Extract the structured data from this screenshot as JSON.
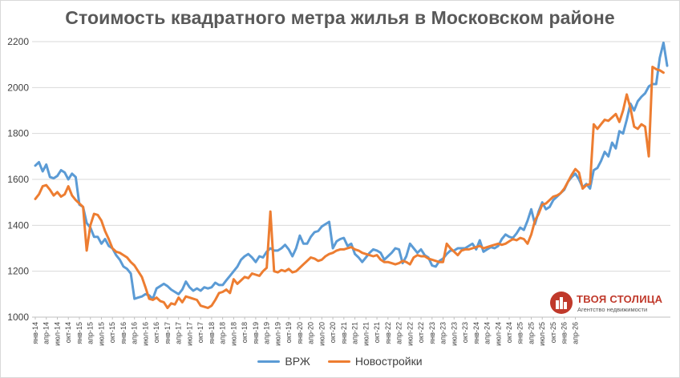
{
  "chart_data": {
    "type": "line",
    "title": "Стоимость квадратного метра жилья в Московском районе",
    "xlabel": "",
    "ylabel": "",
    "ylim": [
      1000,
      2200
    ],
    "yticks": [
      "1000",
      "1200",
      "1400",
      "1600",
      "1800",
      "2000",
      "2200"
    ],
    "grid": "horizontal",
    "legend": "bottom",
    "x_labels": [
      "янв-14",
      "апр-14",
      "июл-14",
      "окт-14",
      "янв-15",
      "апр-15",
      "июл-15",
      "окт-15",
      "янв-16",
      "апр-16",
      "июл-16",
      "окт-16",
      "янв-17",
      "апр-17",
      "июл-17",
      "окт-17",
      "янв-18",
      "апр-18",
      "июл-18",
      "окт-18",
      "янв-19",
      "апр-19",
      "июл-19",
      "окт-19",
      "янв-20",
      "апр-20",
      "июл-20",
      "окт-20",
      "янв-21",
      "апр-21",
      "июл-21",
      "окт-21",
      "янв-22",
      "апр-22",
      "июл-22",
      "окт-22",
      "янв-23",
      "апр-23",
      "июл-23",
      "окт-23",
      "янв-24",
      "апр-24",
      "июл-24",
      "окт-24",
      "янв-25",
      "апр-25",
      "июл-25",
      "окт-25",
      "янв-26",
      "апр-26"
    ],
    "series": [
      {
        "name": "ВРЖ",
        "color": "#5b9bd5",
        "values": [
          1660,
          1675,
          1635,
          1665,
          1610,
          1605,
          1615,
          1640,
          1630,
          1600,
          1625,
          1610,
          1490,
          1480,
          1410,
          1390,
          1350,
          1350,
          1320,
          1340,
          1310,
          1300,
          1270,
          1250,
          1220,
          1210,
          1190,
          1080,
          1085,
          1090,
          1100,
          1095,
          1080,
          1125,
          1135,
          1145,
          1135,
          1120,
          1110,
          1100,
          1120,
          1155,
          1130,
          1115,
          1125,
          1115,
          1130,
          1125,
          1130,
          1150,
          1140,
          1140,
          1160,
          1180,
          1200,
          1220,
          1250,
          1265,
          1275,
          1260,
          1240,
          1265,
          1260,
          1285,
          1300,
          1290,
          1290,
          1300,
          1315,
          1295,
          1265,
          1300,
          1355,
          1320,
          1320,
          1350,
          1370,
          1375,
          1395,
          1405,
          1415,
          1300,
          1330,
          1340,
          1345,
          1310,
          1320,
          1275,
          1260,
          1240,
          1260,
          1280,
          1295,
          1290,
          1280,
          1250,
          1265,
          1280,
          1300,
          1295,
          1235,
          1265,
          1320,
          1300,
          1280,
          1295,
          1270,
          1260,
          1225,
          1220,
          1245,
          1255,
          1275,
          1290,
          1290,
          1300,
          1300,
          1300,
          1310,
          1320,
          1295,
          1335,
          1285,
          1295,
          1305,
          1300,
          1310,
          1340,
          1360,
          1350,
          1345,
          1365,
          1390,
          1380,
          1420,
          1470,
          1405,
          1460,
          1500,
          1470,
          1480,
          1510,
          1525,
          1540,
          1555,
          1590,
          1610,
          1625,
          1600,
          1565,
          1580,
          1560,
          1640,
          1650,
          1680,
          1720,
          1700,
          1760,
          1735,
          1810,
          1800,
          1860,
          1930,
          1900,
          1940,
          1960,
          1975,
          2005,
          2015,
          2015,
          2130,
          2195,
          2095
        ]
      },
      {
        "name": "Новостройки",
        "color": "#ed7d31",
        "values": [
          1515,
          1535,
          1570,
          1575,
          1555,
          1530,
          1545,
          1525,
          1535,
          1570,
          1530,
          1510,
          1495,
          1480,
          1290,
          1400,
          1450,
          1445,
          1420,
          1375,
          1340,
          1300,
          1285,
          1280,
          1270,
          1260,
          1240,
          1225,
          1200,
          1175,
          1130,
          1080,
          1075,
          1085,
          1070,
          1065,
          1040,
          1060,
          1055,
          1085,
          1065,
          1090,
          1085,
          1080,
          1075,
          1050,
          1045,
          1040,
          1050,
          1075,
          1105,
          1110,
          1120,
          1105,
          1165,
          1145,
          1160,
          1175,
          1170,
          1190,
          1185,
          1180,
          1200,
          1215,
          1460,
          1200,
          1195,
          1205,
          1200,
          1210,
          1195,
          1200,
          1215,
          1230,
          1245,
          1260,
          1255,
          1245,
          1250,
          1265,
          1275,
          1280,
          1290,
          1295,
          1295,
          1300,
          1305,
          1295,
          1290,
          1280,
          1275,
          1270,
          1265,
          1270,
          1250,
          1240,
          1240,
          1235,
          1230,
          1235,
          1245,
          1240,
          1230,
          1260,
          1270,
          1265,
          1265,
          1255,
          1250,
          1245,
          1240,
          1240,
          1320,
          1300,
          1285,
          1270,
          1290,
          1295,
          1295,
          1300,
          1305,
          1310,
          1300,
          1305,
          1310,
          1315,
          1320,
          1315,
          1320,
          1330,
          1340,
          1335,
          1345,
          1340,
          1320,
          1360,
          1420,
          1450,
          1490,
          1495,
          1510,
          1525,
          1530,
          1540,
          1560,
          1590,
          1620,
          1645,
          1630,
          1560,
          1575,
          1580,
          1840,
          1820,
          1840,
          1860,
          1855,
          1870,
          1885,
          1850,
          1900,
          1970,
          1910,
          1830,
          1820,
          1840,
          1830,
          1700,
          2090,
          2080,
          2075,
          2065
        ]
      }
    ]
  },
  "legend_items": [
    "ВРЖ",
    "Новостройки"
  ],
  "logo": {
    "name": "ТВОЯ СТОЛИЦА",
    "tagline": "Агентство недвижимости"
  }
}
